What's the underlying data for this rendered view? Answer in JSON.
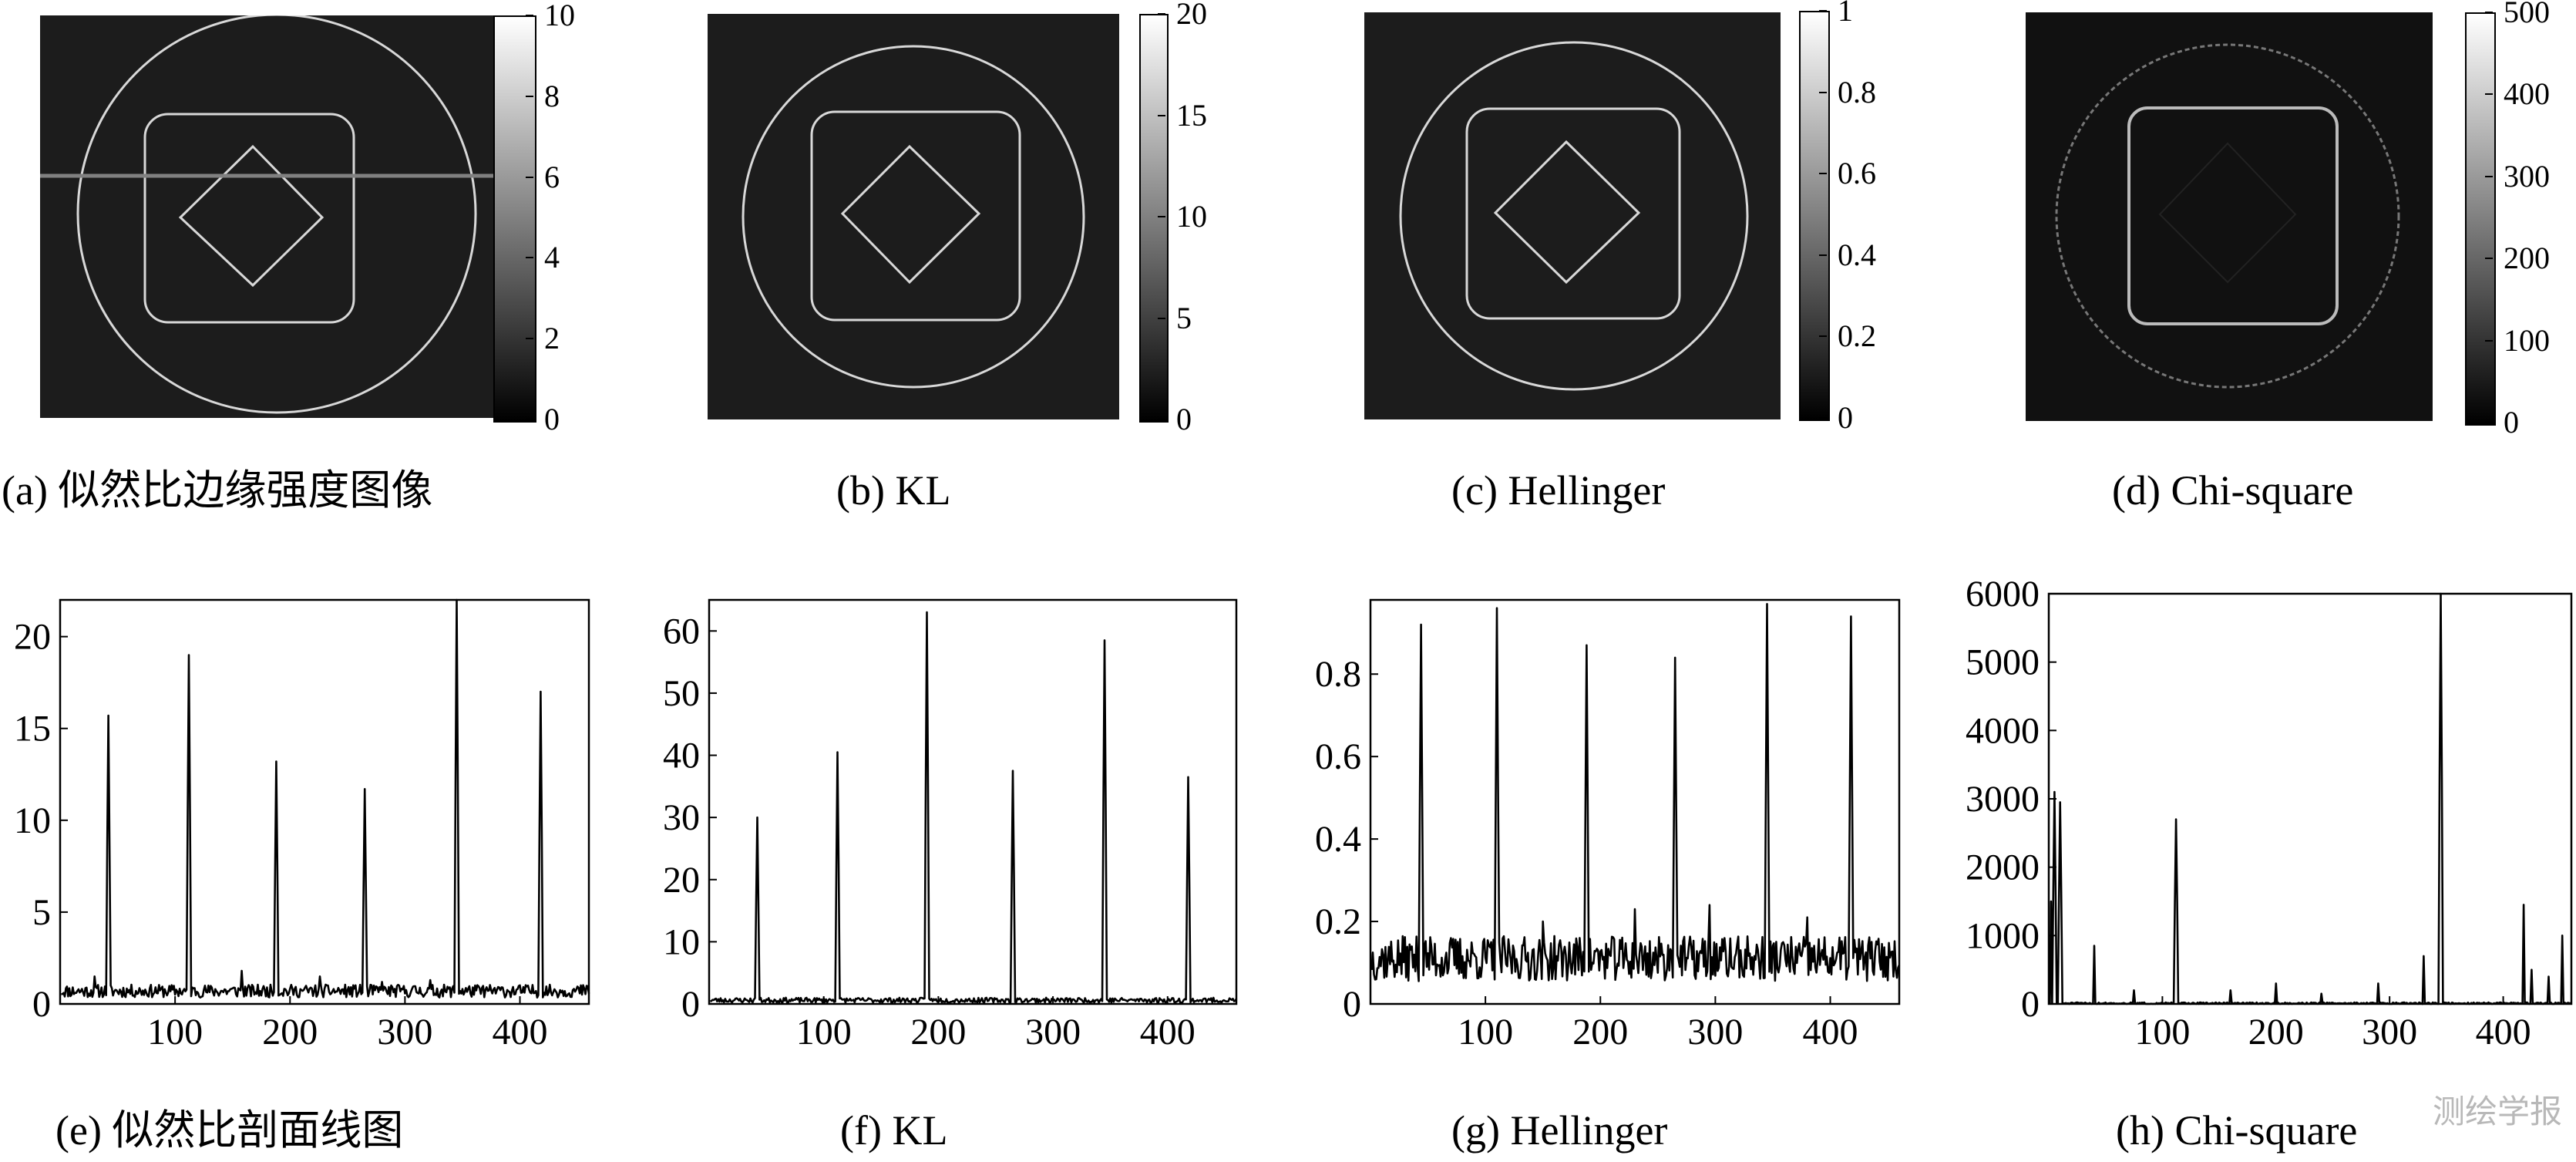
{
  "captions": {
    "a": "(a) 似然比边缘强度图像",
    "b": "(b) KL",
    "c": "(c) Hellinger",
    "d": "(d) Chi-square",
    "e": "(e) 似然比剖面线图",
    "f": "(f) KL",
    "g": "(g) Hellinger",
    "h": "(h) Chi-square"
  },
  "colorbars": {
    "a": [
      "10",
      "8",
      "6",
      "4",
      "2",
      "0"
    ],
    "b": [
      "20",
      "15",
      "10",
      "5",
      "0"
    ],
    "c": [
      "1",
      "0.8",
      "0.6",
      "0.4",
      "0.2",
      "0"
    ],
    "d": [
      "500",
      "400",
      "300",
      "200",
      "100",
      "0"
    ]
  },
  "colors": {
    "image_background": "#1c1c1c",
    "edge_stroke": "#d8d8d8",
    "profile_line": "#808080",
    "plot_line": "#000000"
  },
  "watermark": "测绘学报",
  "chart_data": [
    {
      "id": "e",
      "type": "line",
      "xlim": [
        0,
        460
      ],
      "ylim": [
        0,
        22
      ],
      "xticks": [
        100,
        200,
        300,
        400
      ],
      "yticks": [
        0,
        5,
        10,
        15,
        20
      ],
      "baseline": 0.7,
      "noise": 0.35,
      "seed": 11,
      "peaks": [
        [
          42,
          15.7
        ],
        [
          112,
          19.0
        ],
        [
          188,
          13.2
        ],
        [
          265,
          11.7
        ],
        [
          345,
          22.0
        ],
        [
          418,
          17.0
        ]
      ],
      "spikes": [
        [
          30,
          1.5
        ],
        [
          158,
          1.8
        ],
        [
          226,
          1.5
        ],
        [
          280,
          1.2
        ],
        [
          322,
          1.3
        ]
      ]
    },
    {
      "id": "f",
      "type": "line",
      "xlim": [
        0,
        460
      ],
      "ylim": [
        0,
        65
      ],
      "xticks": [
        100,
        200,
        300,
        400
      ],
      "yticks": [
        0,
        10,
        20,
        30,
        40,
        50,
        60
      ],
      "baseline": 0.6,
      "noise": 0.4,
      "seed": 23,
      "peaks": [
        [
          42,
          30.0
        ],
        [
          112,
          40.5
        ],
        [
          190,
          63.0
        ],
        [
          265,
          37.5
        ],
        [
          345,
          58.5
        ],
        [
          418,
          36.5
        ]
      ],
      "spikes": []
    },
    {
      "id": "g",
      "type": "line",
      "xlim": [
        0,
        460
      ],
      "ylim": [
        0,
        0.98
      ],
      "xticks": [
        100,
        200,
        300,
        400
      ],
      "yticks": [
        0,
        0.2,
        0.4,
        0.6,
        0.8
      ],
      "baseline": 0.11,
      "noise": 0.055,
      "seed": 37,
      "peaks": [
        [
          44,
          0.92
        ],
        [
          110,
          0.96
        ],
        [
          188,
          0.87
        ],
        [
          265,
          0.84
        ],
        [
          345,
          0.97
        ],
        [
          418,
          0.94
        ]
      ],
      "spikes": [
        [
          150,
          0.2
        ],
        [
          230,
          0.23
        ],
        [
          295,
          0.24
        ],
        [
          380,
          0.21
        ]
      ]
    },
    {
      "id": "h",
      "type": "line",
      "xlim": [
        0,
        460
      ],
      "ylim": [
        0,
        6000
      ],
      "xticks": [
        100,
        200,
        300,
        400
      ],
      "yticks": [
        0,
        1000,
        2000,
        3000,
        4000,
        5000,
        6000
      ],
      "baseline": 10,
      "noise": 12,
      "seed": 51,
      "peaks": [
        [
          5,
          3100
        ],
        [
          10,
          2950
        ],
        [
          112,
          2700
        ],
        [
          345,
          6000
        ]
      ],
      "spikes": [
        [
          2,
          1500
        ],
        [
          40,
          850
        ],
        [
          75,
          200
        ],
        [
          160,
          200
        ],
        [
          200,
          300
        ],
        [
          240,
          150
        ],
        [
          290,
          300
        ],
        [
          330,
          700
        ],
        [
          418,
          1450
        ],
        [
          425,
          500
        ],
        [
          440,
          400
        ],
        [
          452,
          1000
        ]
      ]
    }
  ]
}
